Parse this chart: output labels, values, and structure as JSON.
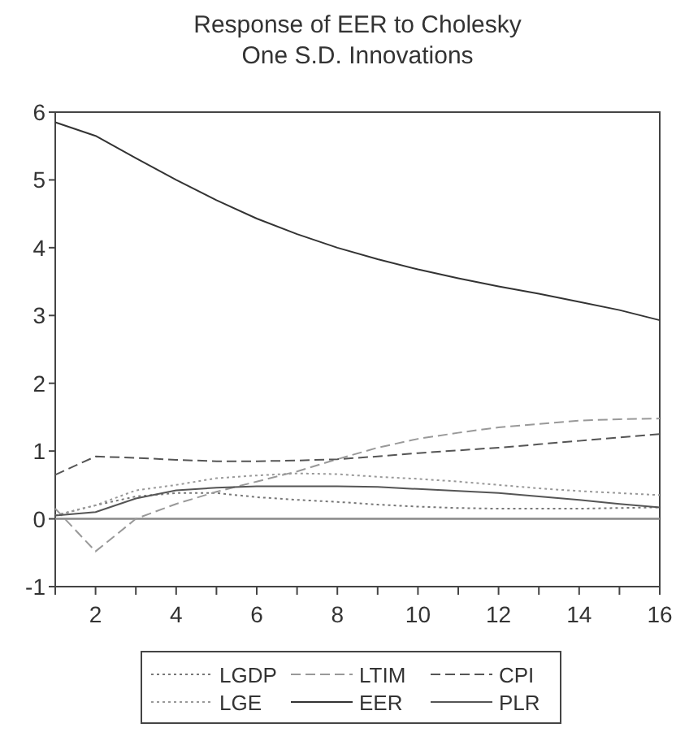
{
  "chart_data": {
    "type": "line",
    "title": "Response of EER to Cholesky\nOne S.D. Innovations",
    "x": [
      1,
      2,
      3,
      4,
      5,
      6,
      7,
      8,
      9,
      10,
      11,
      12,
      13,
      14,
      15,
      16
    ],
    "xlim": [
      1,
      16
    ],
    "xticks": [
      {
        "value": 1,
        "label": null
      },
      2,
      {
        "value": 3,
        "label": null
      },
      4,
      {
        "value": 5,
        "label": null
      },
      6,
      {
        "value": 7,
        "label": null
      },
      8,
      {
        "value": 9,
        "label": null
      },
      10,
      {
        "value": 11,
        "label": null
      },
      12,
      {
        "value": 13,
        "label": null
      },
      14,
      {
        "value": 15,
        "label": null
      },
      16
    ],
    "ylim": [
      -1,
      6
    ],
    "yticks": [
      -1,
      0,
      1,
      2,
      3,
      4,
      5,
      6
    ],
    "grid": false,
    "legend": "bottom",
    "ref_lines": [
      {
        "axis": "y",
        "value": 0,
        "color": "#888888"
      }
    ],
    "series": [
      {
        "name": "LGDP",
        "color": "#777777",
        "line_style": "dotted",
        "values": [
          0.05,
          0.2,
          0.33,
          0.38,
          0.38,
          0.32,
          0.28,
          0.25,
          0.21,
          0.18,
          0.16,
          0.15,
          0.15,
          0.15,
          0.16,
          0.17
        ]
      },
      {
        "name": "LTIM",
        "color": "#999999",
        "line_style": "dashed",
        "values": [
          0.15,
          -0.48,
          0.0,
          0.22,
          0.4,
          0.55,
          0.7,
          0.88,
          1.05,
          1.18,
          1.27,
          1.35,
          1.4,
          1.45,
          1.47,
          1.48
        ]
      },
      {
        "name": "CPI",
        "color": "#555555",
        "line_style": "dashed",
        "values": [
          0.65,
          0.92,
          0.9,
          0.87,
          0.85,
          0.85,
          0.86,
          0.88,
          0.92,
          0.97,
          1.01,
          1.05,
          1.1,
          1.15,
          1.2,
          1.25
        ]
      },
      {
        "name": "LGE",
        "color": "#999999",
        "line_style": "dotted",
        "values": [
          0.05,
          0.2,
          0.42,
          0.5,
          0.6,
          0.64,
          0.67,
          0.66,
          0.62,
          0.59,
          0.55,
          0.5,
          0.45,
          0.41,
          0.38,
          0.35
        ]
      },
      {
        "name": "EER",
        "color": "#333333",
        "line_style": "solid",
        "values": [
          5.85,
          5.65,
          5.32,
          5.0,
          4.7,
          4.43,
          4.2,
          4.0,
          3.83,
          3.68,
          3.55,
          3.43,
          3.32,
          3.2,
          3.08,
          2.93
        ]
      },
      {
        "name": "PLR",
        "color": "#555555",
        "line_style": "solid",
        "values": [
          0.05,
          0.1,
          0.3,
          0.42,
          0.46,
          0.48,
          0.48,
          0.48,
          0.47,
          0.44,
          0.41,
          0.38,
          0.33,
          0.28,
          0.22,
          0.17
        ]
      }
    ]
  }
}
